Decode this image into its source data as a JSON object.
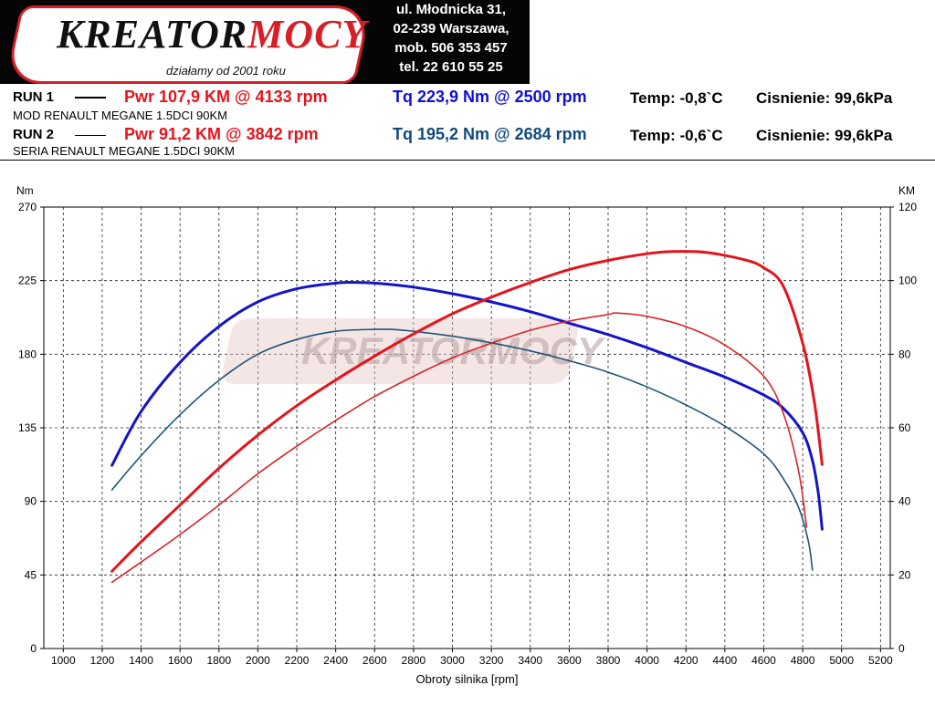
{
  "header": {
    "logo": {
      "word_part1": "KREATOR",
      "word_part2": "MOCY",
      "slogan": "działamy od 2001 roku"
    },
    "contact": [
      "ul. Młodnicka 31,",
      "02-239  Warszawa,",
      "mob.  506 353 457",
      "tel.  22 610 55 25"
    ]
  },
  "runs": [
    {
      "label": "RUN 1",
      "pwr": "Pwr  107,9 KM @ 4133 rpm",
      "tq": "Tq 223,9 Nm @ 2500 rpm",
      "temp": "Temp: -0,8`C",
      "pressure": "Cisnienie: 99,6kPa",
      "description": "MOD RENAULT MEGANE 1.5DCI 90KM"
    },
    {
      "label": "RUN 2",
      "pwr": "Pwr  91,2 KM @ 3842 rpm",
      "tq": "Tq 195,2 Nm @ 2684 rpm",
      "temp": "Temp: -0,6`C",
      "pressure": "Cisnienie: 99,6kPa",
      "description": "SERIA RENAULT MEGANE 1.5DCI 90KM"
    }
  ],
  "colors": {
    "power_run1": "#e3141c",
    "power_run2": "#d8232a",
    "torque_run1": "#1414c8",
    "torque_run2": "#1d5577",
    "logo_red": "#d61f26"
  },
  "chart_data": {
    "type": "line",
    "xlabel": "Obroty silnika [rpm]",
    "ylabel_left": "Nm",
    "ylabel_right": "KM",
    "xlim": [
      900,
      5250
    ],
    "ylim_left": [
      0,
      270
    ],
    "ylim_right": [
      0,
      120
    ],
    "x_ticks": [
      "1000",
      "1200",
      "1400",
      "1600",
      "1800",
      "2000",
      "2200",
      "2400",
      "2600",
      "2800",
      "3000",
      "3200",
      "3400",
      "3600",
      "3800",
      "4000",
      "4200",
      "4400",
      "4600",
      "4800",
      "5000",
      "5200"
    ],
    "y_ticks_left": [
      "0",
      "45",
      "90",
      "135",
      "180",
      "225",
      "270"
    ],
    "y_ticks_right": [
      "0",
      "20",
      "40",
      "60",
      "80",
      "100",
      "120"
    ],
    "grid": true,
    "watermark": "KREATORMOCY",
    "series": [
      {
        "name": "RUN 1",
        "quantity": "Tq",
        "axis": "left",
        "color": "#1414c8",
        "width": 3,
        "points": [
          [
            1250,
            112
          ],
          [
            1400,
            145
          ],
          [
            1600,
            175
          ],
          [
            1800,
            197
          ],
          [
            2000,
            212
          ],
          [
            2200,
            220
          ],
          [
            2400,
            223.5
          ],
          [
            2500,
            223.9
          ],
          [
            2600,
            223.5
          ],
          [
            2800,
            221
          ],
          [
            3000,
            217
          ],
          [
            3200,
            212
          ],
          [
            3400,
            206
          ],
          [
            3600,
            199
          ],
          [
            3800,
            192
          ],
          [
            4000,
            184
          ],
          [
            4200,
            175
          ],
          [
            4400,
            166
          ],
          [
            4600,
            155
          ],
          [
            4700,
            147
          ],
          [
            4800,
            132
          ],
          [
            4850,
            115
          ],
          [
            4880,
            95
          ],
          [
            4900,
            73
          ]
        ]
      },
      {
        "name": "RUN 2",
        "quantity": "Tq",
        "axis": "left",
        "color": "#1d5577",
        "width": 1.6,
        "points": [
          [
            1250,
            97
          ],
          [
            1400,
            118
          ],
          [
            1600,
            143
          ],
          [
            1800,
            164
          ],
          [
            2000,
            180
          ],
          [
            2200,
            189
          ],
          [
            2400,
            194
          ],
          [
            2600,
            195.2
          ],
          [
            2684,
            195.2
          ],
          [
            2800,
            194
          ],
          [
            3000,
            191
          ],
          [
            3200,
            187
          ],
          [
            3400,
            182
          ],
          [
            3600,
            176
          ],
          [
            3800,
            169
          ],
          [
            4000,
            160
          ],
          [
            4200,
            149
          ],
          [
            4400,
            136
          ],
          [
            4600,
            119
          ],
          [
            4700,
            104
          ],
          [
            4780,
            86
          ],
          [
            4830,
            65
          ],
          [
            4850,
            48
          ]
        ]
      },
      {
        "name": "RUN 1",
        "quantity": "Pwr",
        "axis": "right",
        "color": "#e3141c",
        "width": 3,
        "points": [
          [
            1250,
            21
          ],
          [
            1400,
            29
          ],
          [
            1600,
            39
          ],
          [
            1800,
            49
          ],
          [
            2000,
            58
          ],
          [
            2200,
            66
          ],
          [
            2400,
            73
          ],
          [
            2600,
            79.5
          ],
          [
            2800,
            85.5
          ],
          [
            3000,
            91
          ],
          [
            3200,
            95.5
          ],
          [
            3400,
            99.5
          ],
          [
            3600,
            103
          ],
          [
            3800,
            105.5
          ],
          [
            4000,
            107.3
          ],
          [
            4133,
            107.9
          ],
          [
            4300,
            107.7
          ],
          [
            4500,
            105.7
          ],
          [
            4600,
            103.5
          ],
          [
            4700,
            98.5
          ],
          [
            4800,
            83
          ],
          [
            4860,
            67
          ],
          [
            4900,
            50
          ]
        ]
      },
      {
        "name": "RUN 2",
        "quantity": "Pwr",
        "axis": "right",
        "color": "#d8232a",
        "width": 1.6,
        "points": [
          [
            1250,
            18
          ],
          [
            1400,
            23.5
          ],
          [
            1600,
            31
          ],
          [
            1800,
            39
          ],
          [
            2000,
            47.5
          ],
          [
            2200,
            55
          ],
          [
            2400,
            62
          ],
          [
            2600,
            68.5
          ],
          [
            2800,
            74
          ],
          [
            3000,
            79
          ],
          [
            3200,
            83
          ],
          [
            3400,
            86.5
          ],
          [
            3600,
            89
          ],
          [
            3800,
            90.8
          ],
          [
            3842,
            91.2
          ],
          [
            4000,
            90.3
          ],
          [
            4200,
            87.5
          ],
          [
            4400,
            82.5
          ],
          [
            4600,
            74
          ],
          [
            4700,
            64
          ],
          [
            4780,
            48
          ],
          [
            4820,
            33
          ]
        ]
      }
    ]
  }
}
